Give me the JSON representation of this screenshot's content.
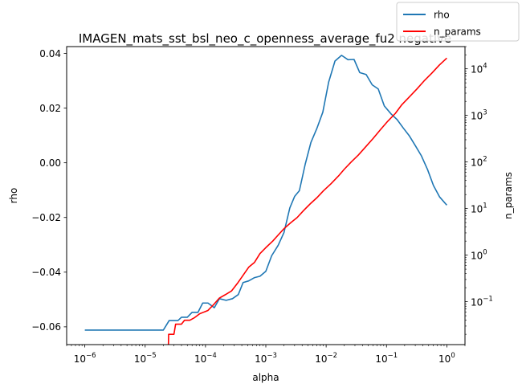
{
  "chart_data": {
    "type": "line",
    "title": "IMAGEN_mats_sst_bsl_neo_c_openness_average_fu2 negative",
    "xlabel": "alpha",
    "ylabel": "rho",
    "y2label": "n_params",
    "xscale": "log",
    "y2scale": "log",
    "xlim": [
      5e-07,
      2
    ],
    "ylim": [
      -0.0665,
      0.0425
    ],
    "y2lim": [
      0.012,
      30000
    ],
    "grid": false,
    "legend_position": "top-right",
    "x_ticks": [
      {
        "value": 1e-06,
        "base": "10",
        "exp": "−6"
      },
      {
        "value": 1e-05,
        "base": "10",
        "exp": "−5"
      },
      {
        "value": 0.0001,
        "base": "10",
        "exp": "−4"
      },
      {
        "value": 0.001,
        "base": "10",
        "exp": "−3"
      },
      {
        "value": 0.01,
        "base": "10",
        "exp": "−2"
      },
      {
        "value": 0.1,
        "base": "10",
        "exp": "−1"
      },
      {
        "value": 1,
        "base": "10",
        "exp": "0"
      }
    ],
    "y_ticks": [
      {
        "value": 0.04,
        "label": "0.04"
      },
      {
        "value": 0.02,
        "label": "0.02"
      },
      {
        "value": 0.0,
        "label": "0.00"
      },
      {
        "value": -0.02,
        "label": "−0.02"
      },
      {
        "value": -0.04,
        "label": "−0.04"
      },
      {
        "value": -0.06,
        "label": "−0.06"
      }
    ],
    "y2_ticks": [
      {
        "value": 0.1,
        "base": "10",
        "exp": "−1"
      },
      {
        "value": 1,
        "base": "10",
        "exp": "0"
      },
      {
        "value": 10,
        "base": "10",
        "exp": "1"
      },
      {
        "value": 100,
        "base": "10",
        "exp": "2"
      },
      {
        "value": 1000,
        "base": "10",
        "exp": "3"
      },
      {
        "value": 10000,
        "base": "10",
        "exp": "4"
      }
    ],
    "series": [
      {
        "name": "rho",
        "axis": "left",
        "color": "#1f77b4",
        "points": [
          [
            1e-06,
            -0.0612
          ],
          [
            1.5e-06,
            -0.0612
          ],
          [
            3e-06,
            -0.0612
          ],
          [
            6e-06,
            -0.0612
          ],
          [
            1.2e-05,
            -0.0612
          ],
          [
            2e-05,
            -0.0612
          ],
          [
            2.5e-05,
            -0.0577
          ],
          [
            3e-05,
            -0.0577
          ],
          [
            3.5e-05,
            -0.0577
          ],
          [
            4e-05,
            -0.0565
          ],
          [
            5e-05,
            -0.0565
          ],
          [
            6e-05,
            -0.0547
          ],
          [
            7.5e-05,
            -0.0547
          ],
          [
            9e-05,
            -0.0513
          ],
          [
            0.00011,
            -0.0513
          ],
          [
            0.00014,
            -0.053
          ],
          [
            0.00017,
            -0.0497
          ],
          [
            0.00022,
            -0.0503
          ],
          [
            0.00028,
            -0.0497
          ],
          [
            0.00035,
            -0.0482
          ],
          [
            0.00042,
            -0.0438
          ],
          [
            0.00052,
            -0.0432
          ],
          [
            0.00065,
            -0.042
          ],
          [
            0.0008,
            -0.0415
          ],
          [
            0.001,
            -0.0397
          ],
          [
            0.00125,
            -0.034
          ],
          [
            0.0016,
            -0.0302
          ],
          [
            0.002,
            -0.0255
          ],
          [
            0.0025,
            -0.0165
          ],
          [
            0.003,
            -0.0123
          ],
          [
            0.0036,
            -0.0102
          ],
          [
            0.0045,
            -0.0005
          ],
          [
            0.0056,
            0.0075
          ],
          [
            0.007,
            0.0125
          ],
          [
            0.0088,
            0.0185
          ],
          [
            0.011,
            0.0295
          ],
          [
            0.014,
            0.0372
          ],
          [
            0.018,
            0.0393
          ],
          [
            0.023,
            0.0377
          ],
          [
            0.029,
            0.0378
          ],
          [
            0.036,
            0.033
          ],
          [
            0.046,
            0.0323
          ],
          [
            0.058,
            0.0285
          ],
          [
            0.073,
            0.027
          ],
          [
            0.092,
            0.0208
          ],
          [
            0.12,
            0.0178
          ],
          [
            0.15,
            0.0158
          ],
          [
            0.19,
            0.0127
          ],
          [
            0.24,
            0.0098
          ],
          [
            0.3,
            0.0063
          ],
          [
            0.38,
            0.0025
          ],
          [
            0.48,
            -0.0025
          ],
          [
            0.6,
            -0.0083
          ],
          [
            0.76,
            -0.0125
          ],
          [
            1,
            -0.0155
          ]
        ]
      },
      {
        "name": "n_params",
        "axis": "right",
        "color": "#ff0000",
        "points": [
          [
            2.4e-05,
            0.0055
          ],
          [
            2.45e-05,
            0.02
          ],
          [
            3e-05,
            0.02
          ],
          [
            3.2e-05,
            0.033
          ],
          [
            4e-05,
            0.033
          ],
          [
            4.5e-05,
            0.04
          ],
          [
            5.5e-05,
            0.04
          ],
          [
            6.5e-05,
            0.045
          ],
          [
            8e-05,
            0.055
          ],
          [
            0.00011,
            0.065
          ],
          [
            0.00014,
            0.09
          ],
          [
            0.00017,
            0.12
          ],
          [
            0.00021,
            0.14
          ],
          [
            0.00027,
            0.17
          ],
          [
            0.00034,
            0.25
          ],
          [
            0.00042,
            0.37
          ],
          [
            0.00052,
            0.55
          ],
          [
            0.00065,
            0.7
          ],
          [
            0.0008,
            1.08
          ],
          [
            0.001,
            1.45
          ],
          [
            0.0013,
            2.0
          ],
          [
            0.0016,
            2.7
          ],
          [
            0.002,
            3.7
          ],
          [
            0.0026,
            5.0
          ],
          [
            0.0033,
            6.4
          ],
          [
            0.0042,
            9.0
          ],
          [
            0.0054,
            12.5
          ],
          [
            0.007,
            17
          ],
          [
            0.009,
            24
          ],
          [
            0.012,
            34
          ],
          [
            0.016,
            50
          ],
          [
            0.02,
            70
          ],
          [
            0.026,
            100
          ],
          [
            0.034,
            140
          ],
          [
            0.045,
            210
          ],
          [
            0.06,
            320
          ],
          [
            0.08,
            500
          ],
          [
            0.105,
            750
          ],
          [
            0.14,
            1100
          ],
          [
            0.18,
            1700
          ],
          [
            0.24,
            2500
          ],
          [
            0.32,
            3700
          ],
          [
            0.42,
            5500
          ],
          [
            0.56,
            8000
          ],
          [
            0.75,
            12000
          ],
          [
            1,
            17000
          ]
        ]
      }
    ]
  }
}
